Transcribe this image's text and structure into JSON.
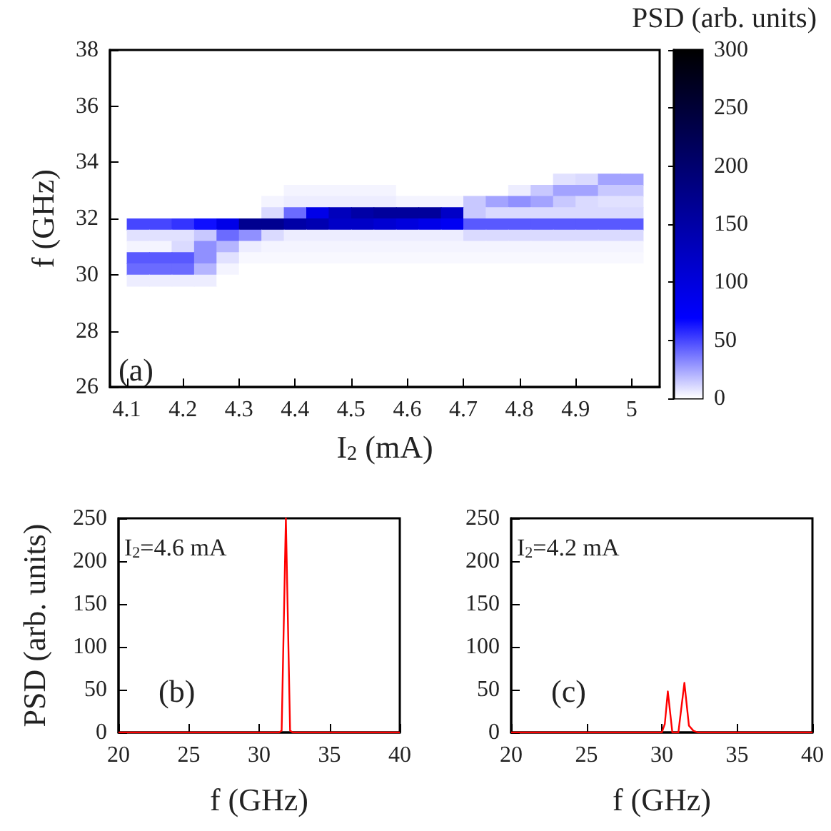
{
  "chart_data": [
    {
      "type": "heatmap",
      "xlabel": "I$_{2}$ (mA)",
      "ylabel": "f (GHz)",
      "clabel": "PSD (arb. units)",
      "annotations": [
        "(a)"
      ],
      "x": [
        4.12,
        4.16,
        4.2,
        4.24,
        4.28,
        4.32,
        4.36,
        4.4,
        4.44,
        4.48,
        4.52,
        4.56,
        4.6,
        4.64,
        4.68,
        4.72,
        4.76,
        4.8,
        4.84,
        4.88,
        4.92,
        4.96,
        5
      ],
      "y": [
        33.4,
        33.0,
        32.6,
        32.2,
        31.8,
        31.4,
        31.0,
        30.6,
        30.2,
        29.8
      ],
      "cells": [
        [
          0,
          0,
          0,
          0,
          0,
          0,
          0,
          0,
          0,
          0,
          0,
          0,
          0,
          0,
          0,
          0,
          0,
          0,
          0,
          8,
          10,
          25,
          25
        ],
        [
          0,
          0,
          0,
          0,
          0,
          0,
          0,
          3,
          3,
          3,
          3,
          3,
          0,
          0,
          0,
          0,
          0,
          5,
          15,
          25,
          25,
          15,
          15
        ],
        [
          0,
          0,
          0,
          0,
          0,
          0,
          3,
          5,
          5,
          5,
          5,
          5,
          3,
          3,
          3,
          15,
          25,
          30,
          25,
          15,
          10,
          8,
          8
        ],
        [
          0,
          0,
          0,
          0,
          0,
          0,
          10,
          40,
          90,
          130,
          150,
          160,
          160,
          160,
          120,
          15,
          10,
          10,
          10,
          10,
          10,
          10,
          10
        ],
        [
          50,
          50,
          55,
          65,
          90,
          170,
          170,
          150,
          140,
          120,
          120,
          110,
          100,
          90,
          80,
          45,
          45,
          45,
          45,
          45,
          45,
          45,
          45
        ],
        [
          8,
          8,
          8,
          15,
          40,
          30,
          10,
          5,
          5,
          5,
          5,
          5,
          5,
          5,
          5,
          10,
          10,
          10,
          10,
          10,
          10,
          10,
          10
        ],
        [
          3,
          3,
          10,
          30,
          20,
          5,
          3,
          3,
          3,
          3,
          3,
          3,
          3,
          3,
          3,
          3,
          3,
          3,
          3,
          3,
          3,
          3,
          3
        ],
        [
          45,
          45,
          45,
          30,
          8,
          2,
          2,
          2,
          2,
          2,
          2,
          2,
          2,
          2,
          2,
          2,
          2,
          2,
          2,
          2,
          2,
          2,
          2
        ],
        [
          40,
          40,
          40,
          20,
          3,
          0,
          0,
          0,
          0,
          0,
          0,
          0,
          0,
          0,
          0,
          0,
          0,
          0,
          0,
          0,
          0,
          0,
          0
        ],
        [
          5,
          5,
          5,
          5,
          0,
          0,
          0,
          0,
          0,
          0,
          0,
          0,
          0,
          0,
          0,
          0,
          0,
          0,
          0,
          0,
          0,
          0,
          0
        ]
      ],
      "xlim": [
        4.07,
        5.05
      ],
      "xticks": [
        4.1,
        4.2,
        4.3,
        4.4,
        4.5,
        4.6,
        4.7,
        4.8,
        4.9,
        5
      ],
      "ylim": [
        26,
        38
      ],
      "yticks": [
        26,
        28,
        30,
        32,
        34,
        36,
        38
      ],
      "clim": [
        0,
        300
      ],
      "cticks": [
        0,
        50,
        100,
        150,
        200,
        250,
        300
      ]
    },
    {
      "type": "line",
      "xlabel": "f (GHz)",
      "ylabel": "PSD (arb. units)",
      "annotations": [
        "(b)",
        "I$_{2}$=4.6 mA"
      ],
      "series": [
        {
          "color": "#ff0000",
          "x": [
            20,
            31.4,
            31.6,
            31.9,
            32.2,
            32.4,
            40
          ],
          "values": [
            0,
            0,
            2,
            250,
            2,
            0,
            0
          ]
        }
      ],
      "xlim": [
        20,
        40
      ],
      "xticks": [
        20,
        25,
        30,
        35,
        40
      ],
      "ylim": [
        0,
        250
      ],
      "yticks": [
        0,
        50,
        100,
        150,
        200,
        250
      ]
    },
    {
      "type": "line",
      "xlabel": "f (GHz)",
      "annotations": [
        "(c)",
        "I$_{2}$=4.2 mA"
      ],
      "series": [
        {
          "color": "#ff0000",
          "x": [
            20,
            30,
            30.2,
            30.4,
            30.7,
            31.1,
            31.5,
            31.8,
            32.1,
            32.4,
            40
          ],
          "values": [
            0,
            0,
            10,
            48,
            0,
            0,
            58,
            8,
            2,
            0,
            0
          ]
        }
      ],
      "xlim": [
        20,
        40
      ],
      "xticks": [
        20,
        25,
        30,
        35,
        40
      ],
      "ylim": [
        0,
        250
      ],
      "yticks": [
        0,
        50,
        100,
        150,
        200,
        250
      ]
    }
  ]
}
